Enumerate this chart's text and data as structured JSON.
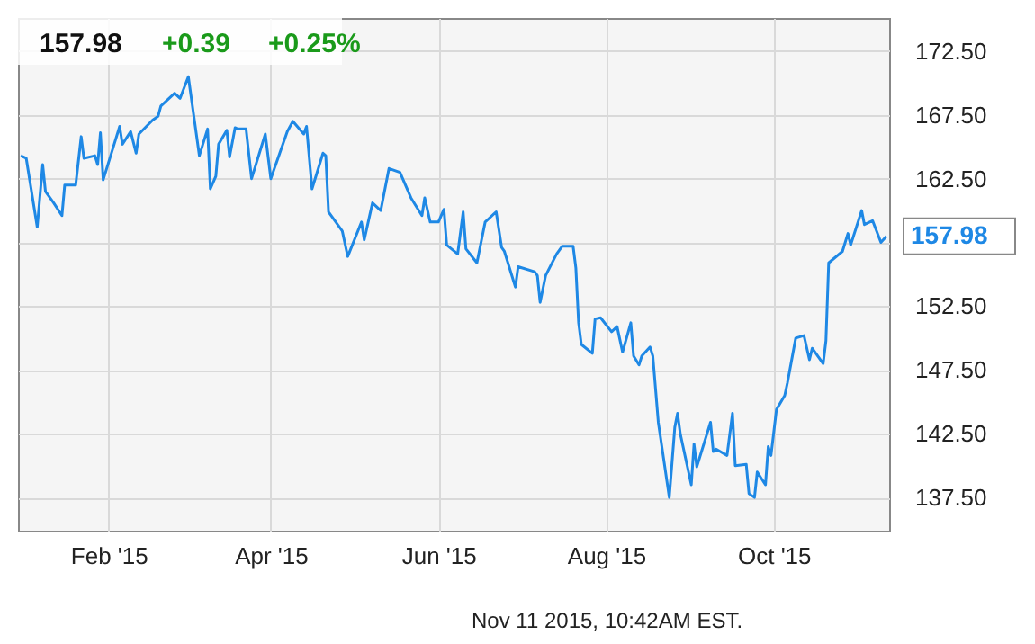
{
  "chart_data": {
    "type": "line",
    "x": [
      "2014-12-31",
      "2015-01-02",
      "2015-01-06",
      "2015-01-08",
      "2015-01-09",
      "2015-01-12",
      "2015-01-15",
      "2015-01-16",
      "2015-01-20",
      "2015-01-22",
      "2015-01-23",
      "2015-01-27",
      "2015-01-28",
      "2015-01-29",
      "2015-01-30",
      "2015-02-03",
      "2015-02-05",
      "2015-02-06",
      "2015-02-09",
      "2015-02-11",
      "2015-02-12",
      "2015-02-17",
      "2015-02-19",
      "2015-02-20",
      "2015-02-25",
      "2015-02-27",
      "2015-03-02",
      "2015-03-04",
      "2015-03-06",
      "2015-03-09",
      "2015-03-10",
      "2015-03-12",
      "2015-03-13",
      "2015-03-16",
      "2015-03-17",
      "2015-03-19",
      "2015-03-20",
      "2015-03-23",
      "2015-03-25",
      "2015-03-30",
      "2015-04-01",
      "2015-04-07",
      "2015-04-09",
      "2015-04-13",
      "2015-04-14",
      "2015-04-16",
      "2015-04-20",
      "2015-04-21",
      "2015-04-22",
      "2015-04-27",
      "2015-04-29",
      "2015-05-04",
      "2015-05-05",
      "2015-05-08",
      "2015-05-11",
      "2015-05-14",
      "2015-05-18",
      "2015-05-22",
      "2015-05-26",
      "2015-05-27",
      "2015-05-29",
      "2015-06-01",
      "2015-06-03",
      "2015-06-04",
      "2015-06-08",
      "2015-06-10",
      "2015-06-11",
      "2015-06-15",
      "2015-06-18",
      "2015-06-22",
      "2015-06-24",
      "2015-06-25",
      "2015-06-29",
      "2015-06-30",
      "2015-07-06",
      "2015-07-07",
      "2015-07-08",
      "2015-07-10",
      "2015-07-14",
      "2015-07-16",
      "2015-07-20",
      "2015-07-21",
      "2015-07-22",
      "2015-07-23",
      "2015-07-27",
      "2015-07-28",
      "2015-07-30",
      "2015-08-03",
      "2015-08-05",
      "2015-08-07",
      "2015-08-10",
      "2015-08-11",
      "2015-08-13",
      "2015-08-14",
      "2015-08-17",
      "2015-08-18",
      "2015-08-20",
      "2015-08-24",
      "2015-08-26",
      "2015-08-27",
      "2015-08-28",
      "2015-09-01",
      "2015-09-02",
      "2015-09-03",
      "2015-09-08",
      "2015-09-09",
      "2015-09-10",
      "2015-09-14",
      "2015-09-16",
      "2015-09-17",
      "2015-09-21",
      "2015-09-22",
      "2015-09-24",
      "2015-09-25",
      "2015-09-28",
      "2015-09-29",
      "2015-09-30",
      "2015-10-02",
      "2015-10-05",
      "2015-10-06",
      "2015-10-09",
      "2015-10-12",
      "2015-10-14",
      "2015-10-15",
      "2015-10-19",
      "2015-10-20",
      "2015-10-21",
      "2015-10-26",
      "2015-10-28",
      "2015-10-29",
      "2015-11-02",
      "2015-11-03",
      "2015-11-06",
      "2015-11-09",
      "2015-11-11"
    ],
    "series": [
      {
        "color": "#1e88e5",
        "values": [
          164.3,
          164.1,
          158.7,
          163.6,
          161.5,
          160.6,
          159.6,
          162.0,
          162.0,
          165.8,
          164.1,
          164.3,
          163.6,
          166.1,
          162.4,
          165.2,
          166.6,
          165.2,
          166.2,
          164.5,
          166.0,
          167.1,
          167.4,
          168.2,
          169.2,
          168.8,
          170.5,
          167.4,
          164.3,
          166.4,
          161.7,
          162.7,
          165.2,
          166.3,
          164.2,
          166.5,
          166.4,
          166.4,
          162.5,
          166.0,
          162.5,
          166.2,
          167.0,
          166.0,
          166.6,
          161.7,
          164.5,
          164.3,
          159.9,
          158.4,
          156.4,
          159.1,
          157.7,
          160.6,
          160.0,
          163.3,
          163.0,
          161.0,
          159.6,
          161.0,
          159.1,
          159.1,
          160.1,
          157.3,
          156.6,
          159.9,
          157.0,
          155.9,
          159.1,
          159.9,
          157.1,
          156.8,
          154.0,
          155.6,
          155.2,
          154.9,
          152.8,
          154.9,
          156.6,
          157.2,
          157.2,
          155.5,
          151.2,
          149.5,
          148.8,
          151.5,
          151.6,
          150.5,
          150.9,
          148.9,
          151.2,
          148.6,
          147.9,
          148.6,
          149.3,
          148.6,
          143.4,
          137.5,
          143.0,
          144.1,
          142.5,
          138.5,
          141.7,
          139.9,
          143.4,
          141.1,
          141.3,
          140.8,
          144.1,
          140.0,
          140.1,
          137.8,
          137.5,
          139.5,
          138.5,
          141.5,
          140.8,
          144.4,
          145.5,
          146.5,
          150.0,
          150.2,
          148.3,
          149.2,
          148.0,
          149.8,
          155.9,
          156.8,
          158.2,
          157.3,
          160.0,
          158.9,
          159.2,
          157.5,
          157.98
        ]
      }
    ],
    "xlim": [
      "2014-12-30",
      "2015-11-12"
    ],
    "xticks": [
      {
        "value": "2015-02-01",
        "label": "Feb '15"
      },
      {
        "value": "2015-04-01",
        "label": "Apr '15"
      },
      {
        "value": "2015-06-01",
        "label": "Jun '15"
      },
      {
        "value": "2015-08-01",
        "label": "Aug '15"
      },
      {
        "value": "2015-10-01",
        "label": "Oct '15"
      }
    ],
    "ylim": [
      134.9,
      175.1
    ],
    "yticks": [
      {
        "value": 137.5,
        "label": "137.50"
      },
      {
        "value": 142.5,
        "label": "142.50"
      },
      {
        "value": 147.5,
        "label": "147.50"
      },
      {
        "value": 152.5,
        "label": "152.50"
      },
      {
        "value": 157.5,
        "label": null
      },
      {
        "value": 162.5,
        "label": "162.50"
      },
      {
        "value": 167.5,
        "label": "167.50"
      },
      {
        "value": 172.5,
        "label": "172.50"
      }
    ],
    "grid": true,
    "annotations": [
      "157.98",
      "+0.39",
      "+0.25%",
      {
        "text": "157.98",
        "x": "2015-11-11",
        "y": 157.98
      },
      "Nov 11 2015, 10:42AM EST."
    ]
  }
}
